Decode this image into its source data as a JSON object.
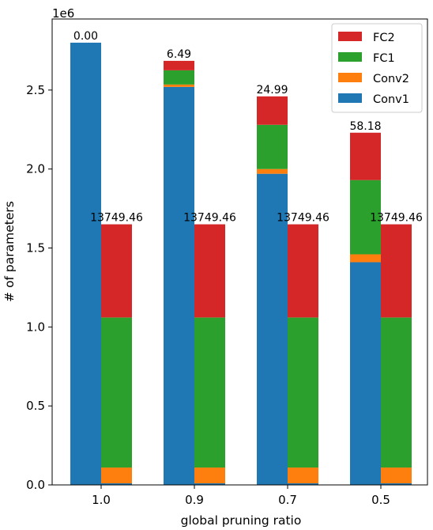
{
  "chart_data": {
    "type": "bar",
    "stacked": true,
    "grouped": true,
    "xlabel": "global pruning ratio",
    "ylabel": "# of parameters",
    "y_offset_label": "1e6",
    "ylim": [
      0,
      2.95
    ],
    "yticks": [
      {
        "value": 0.0,
        "label": "0.0"
      },
      {
        "value": 0.5,
        "label": "0.5"
      },
      {
        "value": 1.0,
        "label": "1.0"
      },
      {
        "value": 1.5,
        "label": "1.5"
      },
      {
        "value": 2.0,
        "label": "2.0"
      },
      {
        "value": 2.5,
        "label": "2.5"
      }
    ],
    "categories": [
      "1.0",
      "0.9",
      "0.7",
      "0.5"
    ],
    "legend_position": "top-right",
    "series_order": [
      "Conv1",
      "Conv2",
      "FC1",
      "FC2"
    ],
    "legend": [
      {
        "name": "FC2",
        "color": "#d62728"
      },
      {
        "name": "FC1",
        "color": "#2ca02c"
      },
      {
        "name": "Conv2",
        "color": "#ff7f0e"
      },
      {
        "name": "Conv1",
        "color": "#1f77b4"
      }
    ],
    "groups": [
      {
        "label": "0.00",
        "segments": {
          "Conv1": 2.8,
          "Conv2": 0.0,
          "FC1": 0.0,
          "FC2": 0.0
        }
      },
      {
        "label": "13749.46",
        "segments": {
          "Conv1": 0.01,
          "Conv2": 0.1,
          "FC1": 0.95,
          "FC2": 0.59
        }
      },
      {
        "label": "6.49",
        "segments": {
          "Conv1": 2.52,
          "Conv2": 0.015,
          "FC1": 0.09,
          "FC2": 0.06
        }
      },
      {
        "label": "13749.46",
        "segments": {
          "Conv1": 0.01,
          "Conv2": 0.1,
          "FC1": 0.95,
          "FC2": 0.59
        }
      },
      {
        "label": "24.99",
        "segments": {
          "Conv1": 1.97,
          "Conv2": 0.03,
          "FC1": 0.28,
          "FC2": 0.18
        }
      },
      {
        "label": "13749.46",
        "segments": {
          "Conv1": 0.01,
          "Conv2": 0.1,
          "FC1": 0.95,
          "FC2": 0.59
        }
      },
      {
        "label": "58.18",
        "segments": {
          "Conv1": 1.41,
          "Conv2": 0.05,
          "FC1": 0.47,
          "FC2": 0.3
        }
      },
      {
        "label": "13749.46",
        "segments": {
          "Conv1": 0.01,
          "Conv2": 0.1,
          "FC1": 0.95,
          "FC2": 0.59
        }
      }
    ]
  }
}
